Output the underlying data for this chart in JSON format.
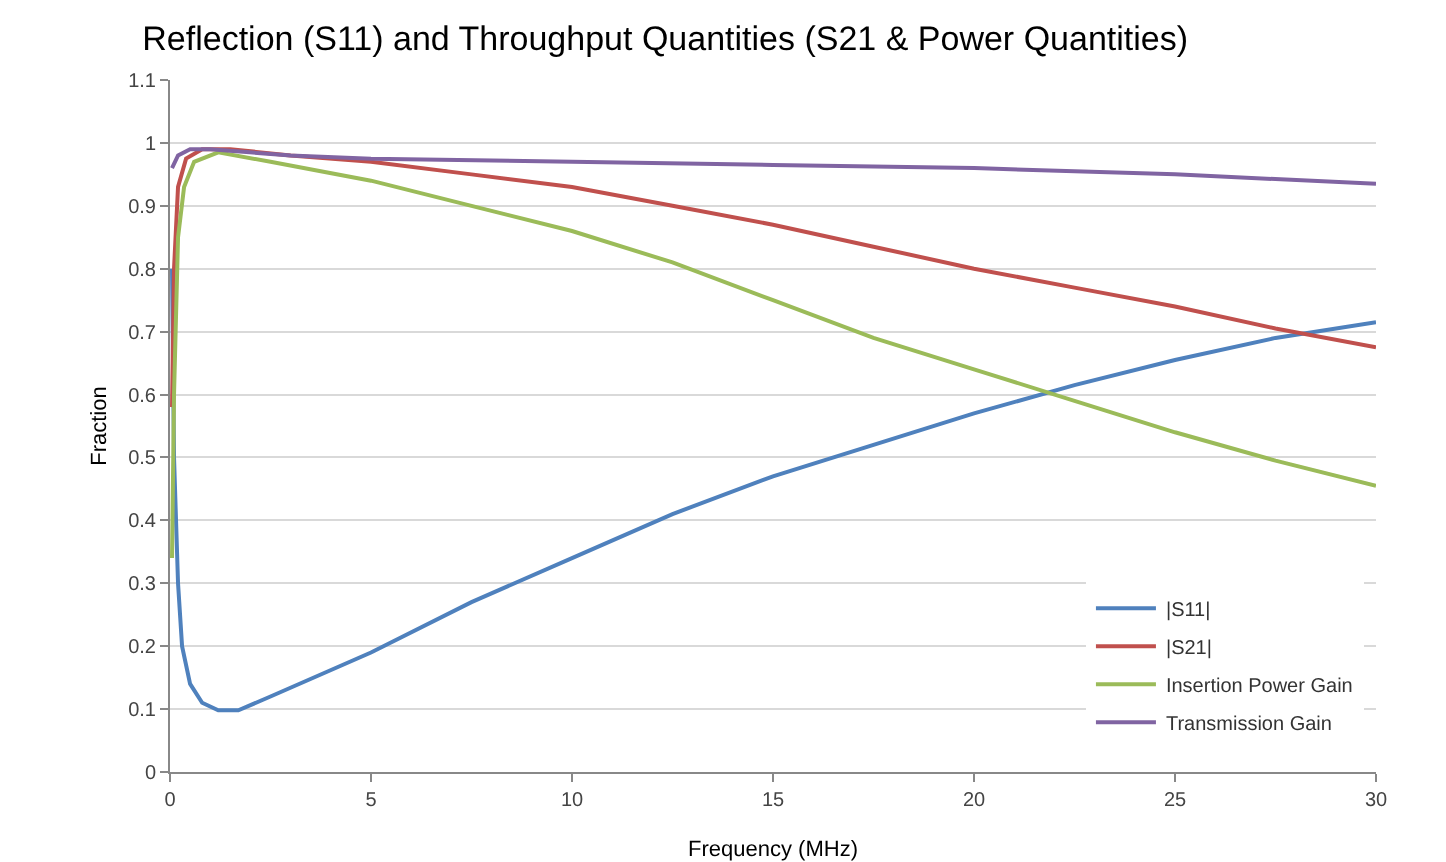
{
  "chart_data": {
    "type": "line",
    "title": "Reflection (S11) and Throughput Quantities (S21 & Power Quantities)",
    "xlabel": "Frequency (MHz)",
    "ylabel": "Fraction",
    "xlim": [
      0,
      30
    ],
    "xticks": [
      0,
      5,
      10,
      15,
      20,
      25,
      30
    ],
    "ylim": [
      0,
      1.1
    ],
    "yticks": [
      0,
      0.1,
      0.2,
      0.3,
      0.4,
      0.5,
      0.6,
      0.7,
      0.8,
      0.9,
      1,
      1.1
    ],
    "grid": "y",
    "legend": "bottom right",
    "marker": "none",
    "line_style": "solid",
    "series": [
      {
        "name": "|S11|",
        "color": "#4f81bd",
        "x": [
          0.05,
          0.1,
          0.2,
          0.3,
          0.5,
          0.8,
          1.2,
          1.7,
          2.5,
          5,
          7.5,
          10,
          12.5,
          15,
          17.5,
          20,
          22.5,
          25,
          27.5,
          30
        ],
        "values": [
          0.8,
          0.5,
          0.3,
          0.2,
          0.14,
          0.11,
          0.098,
          0.098,
          0.12,
          0.19,
          0.27,
          0.34,
          0.41,
          0.47,
          0.52,
          0.57,
          0.615,
          0.655,
          0.69,
          0.715
        ]
      },
      {
        "name": "|S21|",
        "color": "#c0504d",
        "x": [
          0.05,
          0.1,
          0.2,
          0.4,
          0.8,
          1.5,
          3,
          5,
          7.5,
          10,
          12.5,
          15,
          17.5,
          20,
          22.5,
          25,
          27.5,
          30
        ],
        "values": [
          0.58,
          0.8,
          0.93,
          0.975,
          0.99,
          0.99,
          0.98,
          0.97,
          0.95,
          0.93,
          0.9,
          0.87,
          0.835,
          0.8,
          0.77,
          0.74,
          0.705,
          0.675
        ]
      },
      {
        "name": "Insertion Power Gain",
        "color": "#9bbb59",
        "x": [
          0.05,
          0.1,
          0.2,
          0.35,
          0.6,
          1.2,
          2.5,
          5,
          7.5,
          10,
          12.5,
          15,
          17.5,
          20,
          22.5,
          25,
          27.5,
          30
        ],
        "values": [
          0.34,
          0.6,
          0.85,
          0.93,
          0.97,
          0.985,
          0.97,
          0.94,
          0.9,
          0.86,
          0.81,
          0.75,
          0.69,
          0.64,
          0.59,
          0.54,
          0.495,
          0.455
        ]
      },
      {
        "name": "Transmission Gain",
        "color": "#8064a2",
        "x": [
          0.05,
          0.2,
          0.5,
          1,
          3,
          5,
          10,
          15,
          20,
          25,
          30
        ],
        "values": [
          0.96,
          0.98,
          0.99,
          0.99,
          0.98,
          0.975,
          0.97,
          0.965,
          0.96,
          0.95,
          0.935
        ]
      }
    ]
  }
}
